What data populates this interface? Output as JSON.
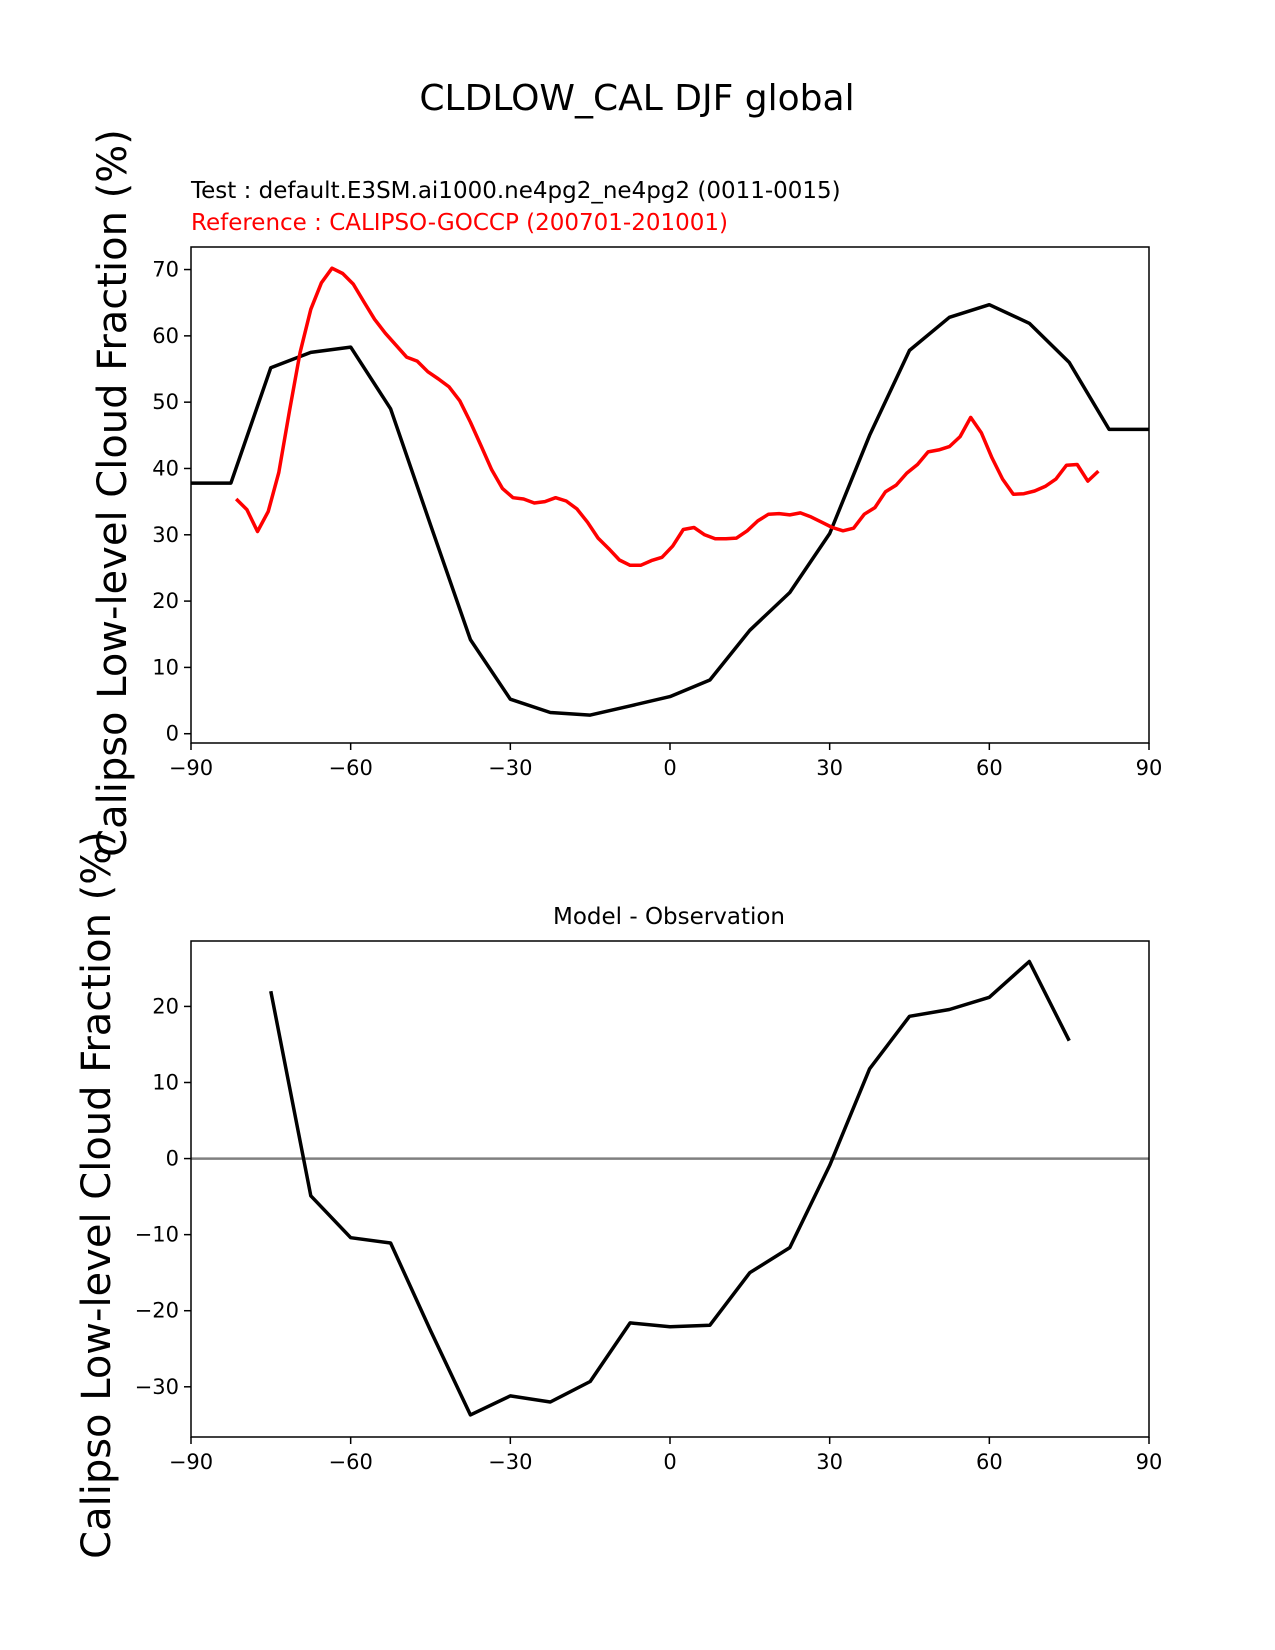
{
  "figure": {
    "title": "CLDLOW_CAL DJF global"
  },
  "chart_data": [
    {
      "type": "line",
      "subtitle_test": "Test : default.E3SM.ai1000.ne4pg2_ne4pg2 (0011-0015)",
      "subtitle_ref": "Reference : CALIPSO-GOCCP (200701-201001)",
      "xlabel": "",
      "ylabel": "Calipso Low-level Cloud Fraction (%)",
      "xlim": [
        -90,
        90
      ],
      "ylim": [
        -1.4,
        73.4
      ],
      "xticks": [
        -90,
        -60,
        -30,
        0,
        30,
        60,
        90
      ],
      "yticks": [
        0,
        10,
        20,
        30,
        40,
        50,
        60,
        70
      ],
      "grid": false,
      "legend": "none",
      "series": [
        {
          "color": "#000000",
          "x": [
            -90,
            -82.5,
            -75,
            -67.5,
            -60,
            -52.5,
            -45,
            -37.5,
            -30,
            -22.5,
            -15,
            -7.5,
            0,
            7.5,
            15,
            22.5,
            30,
            37.5,
            45,
            52.5,
            60,
            67.5,
            75,
            82.5,
            90
          ],
          "values": [
            37.8,
            37.8,
            55.2,
            57.5,
            58.3,
            49.0,
            31.5,
            14.2,
            5.2,
            3.2,
            2.8,
            4.2,
            5.6,
            8.1,
            15.6,
            21.3,
            30.2,
            45.0,
            57.8,
            62.8,
            64.7,
            61.9,
            56.0,
            45.9,
            45.9
          ]
        },
        {
          "color": "#ff0000",
          "x": [
            -81.5,
            -79.5,
            -77.5,
            -75.5,
            -73.5,
            -71.5,
            -69.5,
            -67.5,
            -65.5,
            -63.5,
            -61.5,
            -59.5,
            -57.5,
            -55.5,
            -53.5,
            -51.5,
            -49.5,
            -47.5,
            -45.5,
            -43.5,
            -41.5,
            -39.5,
            -37.5,
            -35.5,
            -33.5,
            -31.5,
            -29.5,
            -27.5,
            -25.5,
            -23.5,
            -21.5,
            -19.5,
            -17.5,
            -15.5,
            -13.5,
            -11.5,
            -9.5,
            -7.5,
            -5.5,
            -3.5,
            -1.5,
            0.5,
            2.5,
            4.5,
            6.5,
            8.5,
            10.5,
            12.5,
            14.5,
            16.5,
            18.5,
            20.5,
            22.5,
            24.5,
            26.5,
            28.5,
            30.5,
            32.5,
            34.5,
            36.5,
            38.5,
            40.5,
            42.5,
            44.5,
            46.5,
            48.5,
            50.5,
            52.5,
            54.5,
            56.5,
            58.5,
            60.5,
            62.5,
            64.5,
            66.5,
            68.5,
            70.5,
            72.5,
            74.5,
            76.5,
            78.5,
            80.5
          ],
          "values": [
            35.4,
            33.8,
            30.5,
            33.5,
            39.4,
            48.7,
            57.5,
            64.0,
            68.0,
            70.2,
            69.4,
            67.8,
            65.1,
            62.5,
            60.4,
            58.6,
            56.8,
            56.2,
            54.6,
            53.5,
            52.3,
            50.2,
            47.0,
            43.4,
            39.8,
            37.0,
            35.6,
            35.4,
            34.8,
            35.0,
            35.6,
            35.1,
            33.9,
            31.9,
            29.5,
            27.9,
            26.2,
            25.4,
            25.4,
            26.1,
            26.6,
            28.3,
            30.8,
            31.1,
            30.0,
            29.4,
            29.4,
            29.5,
            30.6,
            32.1,
            33.1,
            33.2,
            33.0,
            33.3,
            32.7,
            31.9,
            31.1,
            30.6,
            31.0,
            33.1,
            34.1,
            36.5,
            37.5,
            39.3,
            40.6,
            42.5,
            42.8,
            43.3,
            44.8,
            47.7,
            45.4,
            41.6,
            38.4,
            36.1,
            36.2,
            36.6,
            37.3,
            38.4,
            40.5,
            40.6,
            38.1,
            39.6
          ]
        }
      ]
    },
    {
      "type": "line",
      "title": "Model - Observation",
      "xlabel": "",
      "ylabel": "Calipso Low-level Cloud Fraction (%)",
      "xlim": [
        -90,
        90
      ],
      "ylim": [
        -36.6,
        28.6
      ],
      "xticks": [
        -90,
        -60,
        -30,
        0,
        30,
        60,
        90
      ],
      "yticks": [
        -30,
        -20,
        -10,
        0,
        10,
        20
      ],
      "grid": false,
      "legend": "none",
      "zero_line_color": "#808080",
      "series": [
        {
          "color": "#000000",
          "x": [
            -75,
            -67.5,
            -60,
            -52.5,
            -45,
            -37.5,
            -30,
            -22.5,
            -15,
            -7.5,
            0,
            7.5,
            15,
            22.5,
            30,
            37.5,
            45,
            52.5,
            60,
            67.5,
            75
          ],
          "values": [
            22.0,
            -4.9,
            -10.4,
            -11.1,
            -22.6,
            -33.7,
            -31.2,
            -32.0,
            -29.3,
            -21.6,
            -22.1,
            -21.9,
            -15.0,
            -11.7,
            -0.9,
            11.8,
            18.7,
            19.6,
            21.2,
            25.9,
            15.5
          ]
        }
      ]
    }
  ]
}
